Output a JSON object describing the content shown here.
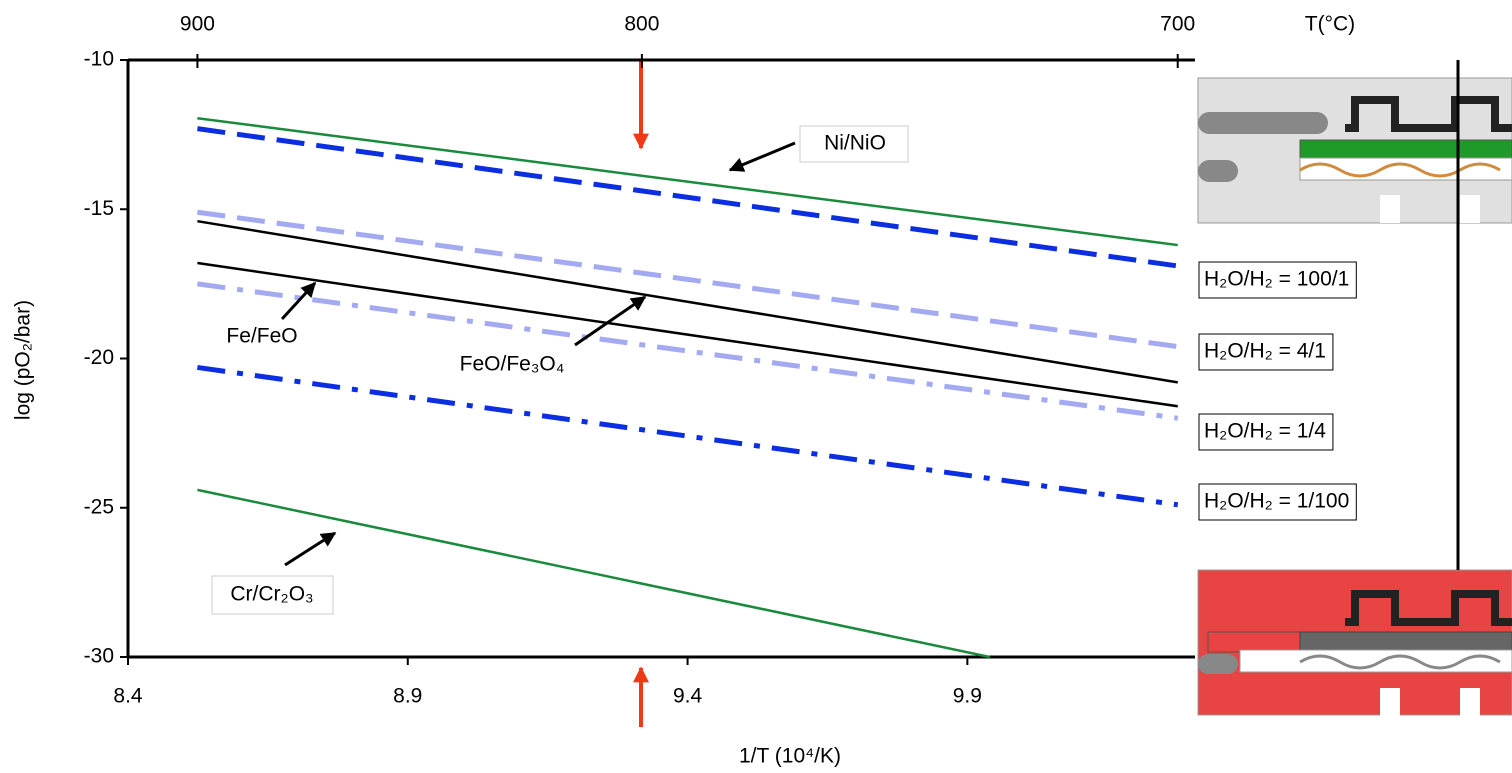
{
  "chart_data": {
    "type": "line",
    "xlabel": "1/T (10⁴/K)",
    "ylabel": "log (pO₂/bar)",
    "x2label": "T(°C)",
    "xlim": [
      8.4,
      10.28
    ],
    "xticks": [
      8.4,
      8.9,
      9.4,
      9.9
    ],
    "ylim": [
      -30,
      -10
    ],
    "yticks": [
      -30,
      -25,
      -20,
      -15,
      -10
    ],
    "x2ticks": [
      900,
      800,
      700
    ],
    "series": [
      {
        "color": "#1a8a3c",
        "style": "solid",
        "x": [
          8.524,
          10.276
        ],
        "values": [
          -11.95,
          -16.2
        ]
      },
      {
        "color": "#0b2fe0",
        "style": "dash",
        "x": [
          8.524,
          10.276
        ],
        "values": [
          -12.3,
          -16.9
        ]
      },
      {
        "color": "#a3aaf2",
        "style": "dash",
        "x": [
          8.524,
          10.276
        ],
        "values": [
          -15.1,
          -19.6
        ]
      },
      {
        "color": "#000000",
        "style": "solid",
        "x": [
          8.524,
          10.276
        ],
        "values": [
          -15.4,
          -20.8
        ]
      },
      {
        "color": "#000000",
        "style": "solid",
        "x": [
          8.524,
          10.276
        ],
        "values": [
          -16.8,
          -21.6
        ]
      },
      {
        "color": "#a3aaf2",
        "style": "dashdot",
        "x": [
          8.524,
          10.276
        ],
        "values": [
          -17.5,
          -22.0
        ]
      },
      {
        "color": "#0b2fe0",
        "style": "dashdot",
        "x": [
          8.524,
          10.276
        ],
        "values": [
          -20.3,
          -24.9
        ]
      },
      {
        "color": "#1a8a3c",
        "style": "solid",
        "x": [
          8.524,
          9.94
        ],
        "values": [
          -24.4,
          -30
        ]
      }
    ],
    "annotations": [
      "Ni/NiO",
      "Fe/FeO",
      "FeO/Fe₃O₄",
      "Cr/Cr₂O₃"
    ],
    "boxes": [
      "H₂O/H₂ = 100/1",
      "H₂O/H₂ = 4/1",
      "H₂O/H₂ = 1/4",
      "H₂O/H₂ = 1/100"
    ]
  }
}
